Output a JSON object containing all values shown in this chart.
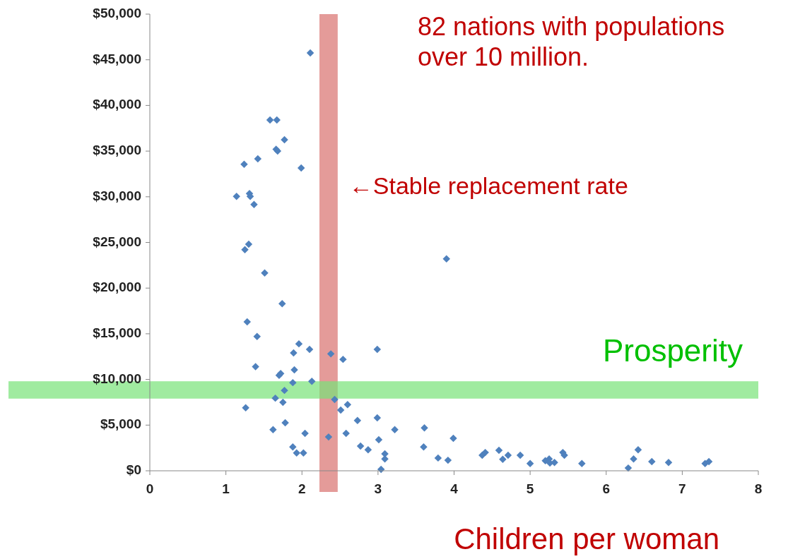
{
  "chart_data": {
    "type": "scatter",
    "xlabel": "Children per woman",
    "annotations": [
      "82 nations with populations over 10 million."
    ],
    "xlim": [
      0,
      8
    ],
    "xticks": [
      0,
      1,
      2,
      3,
      4,
      5,
      6,
      7,
      8
    ],
    "ylim": [
      0,
      50000
    ],
    "yticks": [
      {
        "value": 0,
        "label": "$0"
      },
      {
        "value": 5000,
        "label": "$5,000"
      },
      {
        "value": 10000,
        "label": "$10,000"
      },
      {
        "value": 15000,
        "label": "$15,000"
      },
      {
        "value": 20000,
        "label": "$20,000"
      },
      {
        "value": 25000,
        "label": "$25,000"
      },
      {
        "value": 30000,
        "label": "$30,000"
      },
      {
        "value": 35000,
        "label": "$35,000"
      },
      {
        "value": 40000,
        "label": "$40,000"
      },
      {
        "value": 45000,
        "label": "$45,000"
      },
      {
        "value": 50000,
        "label": "$50,000"
      }
    ],
    "grid": false,
    "marker": "diamond",
    "bands": [
      {
        "axis": "x",
        "from": 2.23,
        "to": 2.47,
        "label": "←Stable replacement rate",
        "color": "#d9706e"
      },
      {
        "axis": "y",
        "from": 7900,
        "to": 9800,
        "label": "Prosperity",
        "color": "#77e277"
      }
    ],
    "series": [
      {
        "color": "#4f81bd",
        "x": [
          2.11,
          1.58,
          1.67,
          1.77,
          1.66,
          1.68,
          1.42,
          1.24,
          1.99,
          1.14,
          1.31,
          1.32,
          1.37,
          1.3,
          1.25,
          1.51,
          1.74,
          3.9,
          1.28,
          1.41,
          1.96,
          2.1,
          1.89,
          2.38,
          2.54,
          2.99,
          1.39,
          1.9,
          1.72,
          1.7,
          1.88,
          2.13,
          1.77,
          1.65,
          1.75,
          2.43,
          2.6,
          2.51,
          1.26,
          2.73,
          2.99,
          1.78,
          3.22,
          1.62,
          2.04,
          2.58,
          2.35,
          3.01,
          2.77,
          2.87,
          1.88,
          1.93,
          2.02,
          3.09,
          3.09,
          3.04,
          3.61,
          3.6,
          3.99,
          3.79,
          3.92,
          4.37,
          4.41,
          4.59,
          4.64,
          4.71,
          4.87,
          5.0,
          5.2,
          5.25,
          5.26,
          5.32,
          5.43,
          5.45,
          5.68,
          6.29,
          6.36,
          6.42,
          6.6,
          6.82,
          7.3,
          7.35
        ],
        "values": [
          45750,
          38400,
          38400,
          36250,
          35200,
          35000,
          34150,
          33550,
          33150,
          30050,
          30350,
          30050,
          29150,
          24800,
          24200,
          21650,
          18300,
          23200,
          16300,
          14700,
          13900,
          13300,
          12900,
          12800,
          12200,
          13300,
          11400,
          11050,
          10650,
          10450,
          9650,
          9800,
          8800,
          7950,
          7500,
          7800,
          7250,
          6650,
          6900,
          5500,
          5800,
          5250,
          4500,
          4500,
          4100,
          4100,
          3700,
          3400,
          2700,
          2300,
          2600,
          1950,
          1950,
          1850,
          1300,
          150,
          4700,
          2600,
          3550,
          1400,
          1150,
          1700,
          2000,
          2250,
          1250,
          1700,
          1700,
          800,
          1100,
          1300,
          850,
          900,
          2000,
          1700,
          800,
          300,
          1300,
          2300,
          1000,
          900,
          800,
          1000
        ]
      }
    ]
  }
}
